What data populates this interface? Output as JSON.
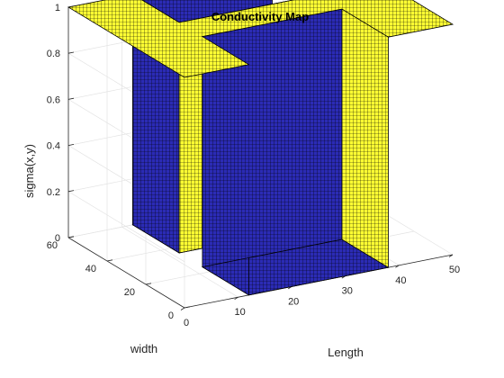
{
  "chart_data": {
    "type": "surface",
    "title": "Conductivity Map",
    "xlabel": "Length",
    "ylabel": "width",
    "zlabel": "sigma(x,y)",
    "xlim": [
      0,
      50
    ],
    "ylim": [
      0,
      60
    ],
    "zlim": [
      0,
      1
    ],
    "xticks": [
      "0",
      "10",
      "20",
      "30",
      "40",
      "50"
    ],
    "yticks": [
      "0",
      "20",
      "40",
      "60"
    ],
    "zticks": [
      "0",
      "0.2",
      "0.4",
      "0.6",
      "0.8",
      "1"
    ],
    "grid": true,
    "colors": {
      "low": "#2b2bb5",
      "high": "#ffff33",
      "mesh": "#000000"
    },
    "surface": {
      "description_of_values": "sigma = 1 on an H-shaped conducting region, 0 elsewhere",
      "high_regions": [
        {
          "x": [
            0,
            50
          ],
          "y": [
            24,
            36
          ]
        },
        {
          "x": [
            0,
            12
          ],
          "y": [
            0,
            60
          ]
        },
        {
          "x": [
            38,
            50
          ],
          "y": [
            0,
            60
          ]
        }
      ],
      "low_value": 0,
      "high_value": 1
    }
  }
}
